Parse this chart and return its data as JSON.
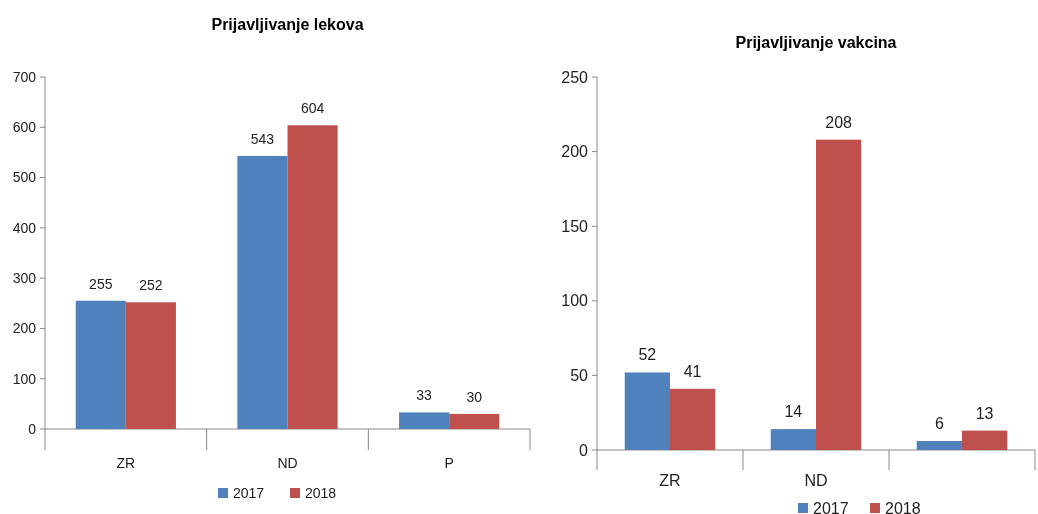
{
  "chart_data": [
    {
      "type": "bar",
      "title": "Prijavljivanje lekova",
      "categories": [
        "ZR",
        "ND",
        "P"
      ],
      "series": [
        {
          "name": "2017",
          "color": "#4f81bd",
          "values": [
            255,
            543,
            33
          ]
        },
        {
          "name": "2018",
          "color": "#c0504d",
          "values": [
            252,
            604,
            30
          ]
        }
      ],
      "ylim": [
        0,
        700
      ],
      "yticks": [
        0,
        100,
        200,
        300,
        400,
        500,
        600,
        700
      ],
      "data_labels": true,
      "legend": "bottom",
      "grid": false
    },
    {
      "type": "bar",
      "title": "Prijavljivanje vakcina",
      "categories": [
        "ZR",
        "ND",
        null
      ],
      "series": [
        {
          "name": "2017",
          "color": "#4f81bd",
          "values": [
            52,
            14,
            6
          ]
        },
        {
          "name": "2018",
          "color": "#c0504d",
          "values": [
            41,
            208,
            13
          ]
        }
      ],
      "ylim": [
        0,
        250
      ],
      "yticks": [
        0,
        50,
        100,
        150,
        200,
        250
      ],
      "data_labels": true,
      "legend": "bottom",
      "grid": false
    }
  ]
}
